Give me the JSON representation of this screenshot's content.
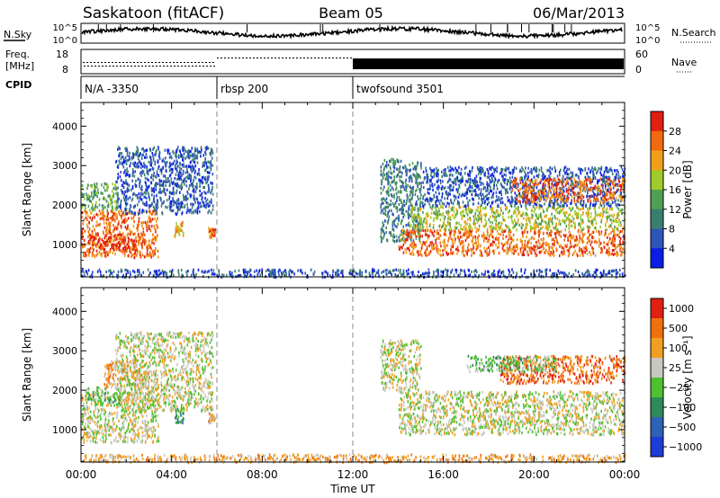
{
  "header": {
    "station": "Saskatoon (fitACF)",
    "beam": "Beam 05",
    "date": "06/Mar/2013"
  },
  "strip_nsky": {
    "left_label": "N.Sky",
    "left_ticks": [
      "10^5",
      "10^0"
    ],
    "right_ticks": [
      "10^5",
      "10^0"
    ],
    "right_label": "N.Search"
  },
  "strip_freq": {
    "left_label_line1": "Freq.",
    "left_label_line2": "[MHz]",
    "left_ticks": [
      "18",
      "8"
    ],
    "right_ticks": [
      "60",
      "0"
    ],
    "right_label": "Nave"
  },
  "cpid": {
    "label": "CPID",
    "segments": [
      {
        "text": "N/A -3350",
        "start_hour": 0
      },
      {
        "text": "rbsp 200",
        "start_hour": 6
      },
      {
        "text": "twofsound 3501",
        "start_hour": 12
      }
    ]
  },
  "time_axis": {
    "label": "Time UT",
    "ticks": [
      "00:00",
      "04:00",
      "08:00",
      "12:00",
      "16:00",
      "20:00",
      "00:00"
    ],
    "tick_hours": [
      0,
      4,
      8,
      12,
      16,
      20,
      24
    ]
  },
  "colors": {
    "power": [
      "#0a1ee6",
      "#2e55b8",
      "#3a7f6e",
      "#4f9f55",
      "#9fcc2a",
      "#f0a018",
      "#f06a10",
      "#e02010"
    ],
    "velocity": [
      "#1e3cd6",
      "#2e62b5",
      "#2e8a58",
      "#4fc030",
      "#c8c8c0",
      "#f0a020",
      "#f07010",
      "#e02010"
    ]
  },
  "chart_data": [
    {
      "type": "heatmap",
      "name": "power",
      "xlabel": "",
      "ylabel": "Slant Range [km]",
      "yticks": [
        1000,
        2000,
        3000,
        4000
      ],
      "ylim": [
        180,
        4600
      ],
      "xlim": [
        0,
        24
      ],
      "colorbar": {
        "label": "Power [dB]",
        "ticks": [
          "28",
          "24",
          "20",
          "16",
          "12",
          "8",
          "4"
        ]
      },
      "echo_regions": [
        {
          "t0": 0.0,
          "t1": 3.4,
          "r0": 700,
          "r1": 1900,
          "level": 6
        },
        {
          "t0": 0.3,
          "t1": 2.8,
          "r0": 900,
          "r1": 1300,
          "level": 7
        },
        {
          "t0": 1.5,
          "t1": 5.8,
          "r0": 1800,
          "r1": 3500,
          "level": 1
        },
        {
          "t0": 0.0,
          "t1": 1.6,
          "r0": 1900,
          "r1": 2600,
          "level": 3
        },
        {
          "t0": 4.1,
          "t1": 4.5,
          "r0": 1200,
          "r1": 1600,
          "level": 5
        },
        {
          "t0": 5.6,
          "t1": 5.9,
          "r0": 1200,
          "r1": 1450,
          "level": 6
        },
        {
          "t0": 13.2,
          "t1": 15.0,
          "r0": 1100,
          "r1": 3200,
          "level": 2
        },
        {
          "t0": 14.0,
          "t1": 24.0,
          "r0": 750,
          "r1": 1400,
          "level": 6
        },
        {
          "t0": 14.5,
          "t1": 24.0,
          "r0": 1400,
          "r1": 2000,
          "level": 4
        },
        {
          "t0": 15.0,
          "t1": 24.0,
          "r0": 2000,
          "r1": 3000,
          "level": 1
        },
        {
          "t0": 19.0,
          "t1": 24.0,
          "r0": 2100,
          "r1": 2700,
          "level": 6
        },
        {
          "t0": 0.0,
          "t1": 24.0,
          "r0": 200,
          "r1": 400,
          "level": 1
        }
      ]
    },
    {
      "type": "heatmap",
      "name": "velocity",
      "xlabel": "Time UT",
      "ylabel": "Slant Range [km]",
      "yticks": [
        1000,
        2000,
        3000,
        4000
      ],
      "ylim": [
        180,
        4600
      ],
      "xlim": [
        0,
        24
      ],
      "colorbar": {
        "label": "Velocity [m s⁻¹]",
        "ticks": [
          "1000",
          "500",
          "100",
          "25",
          "−25",
          "−100",
          "−500",
          "−1000"
        ]
      },
      "echo_regions": [
        {
          "t0": 0.0,
          "t1": 3.4,
          "r0": 700,
          "r1": 2000,
          "level": 4
        },
        {
          "t0": 1.0,
          "t1": 3.0,
          "r0": 2100,
          "r1": 2800,
          "level": 5
        },
        {
          "t0": 1.5,
          "t1": 5.8,
          "r0": 1500,
          "r1": 3500,
          "level": 4
        },
        {
          "t0": 0.2,
          "t1": 1.8,
          "r0": 1700,
          "r1": 2100,
          "level": 3
        },
        {
          "t0": 4.1,
          "t1": 4.5,
          "r0": 1200,
          "r1": 1600,
          "level": 2
        },
        {
          "t0": 5.6,
          "t1": 5.9,
          "r0": 1200,
          "r1": 1450,
          "level": 5
        },
        {
          "t0": 13.2,
          "t1": 15.0,
          "r0": 2000,
          "r1": 3300,
          "level": 4
        },
        {
          "t0": 14.0,
          "t1": 24.0,
          "r0": 900,
          "r1": 2000,
          "level": 4
        },
        {
          "t0": 18.5,
          "t1": 24.0,
          "r0": 2200,
          "r1": 2900,
          "level": 6
        },
        {
          "t0": 17.0,
          "t1": 21.0,
          "r0": 2500,
          "r1": 2900,
          "level": 3
        },
        {
          "t0": 0.0,
          "t1": 24.0,
          "r0": 200,
          "r1": 400,
          "level": 5
        }
      ]
    }
  ]
}
